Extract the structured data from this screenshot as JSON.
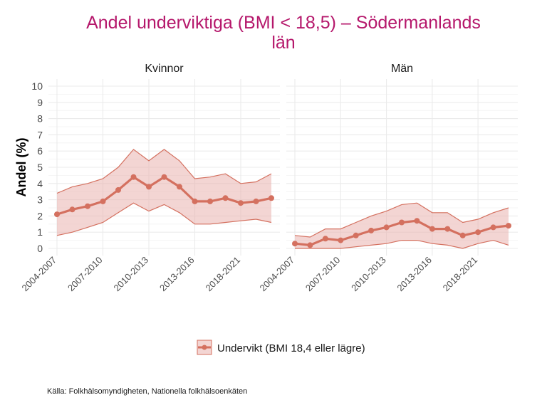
{
  "chart_data": {
    "type": "line",
    "title": "Andel underviktiga (BMI < 18,5) – Södermanlands län",
    "title_lines": [
      "Andel underviktiga (BMI < 18,5) – Södermanlands",
      "län"
    ],
    "ylabel": "Andel (%)",
    "xlabel": "",
    "ylim": [
      0,
      10
    ],
    "yticks": [
      0,
      1,
      2,
      3,
      4,
      5,
      6,
      7,
      8,
      9,
      10
    ],
    "x_index": [
      0,
      1,
      2,
      3,
      4,
      5,
      6,
      7,
      8,
      9,
      10,
      11,
      12,
      13,
      14
    ],
    "xticks": [
      {
        "index": 0,
        "label": "2004-2007"
      },
      {
        "index": 3,
        "label": "2007-2010"
      },
      {
        "index": 6,
        "label": "2010-2013"
      },
      {
        "index": 9,
        "label": "2013-2016"
      },
      {
        "index": 12,
        "label": "2018-2021"
      }
    ],
    "grid": true,
    "legend": {
      "position": "bottom",
      "label": "Undervikt (BMI 18,4 eller lägre)"
    },
    "color": "#d4705f",
    "ribbon_color": "#eab3ae",
    "panels": [
      {
        "name": "Kvinnor",
        "series": [
          {
            "name": "Undervikt (BMI 18,4 eller lägre)",
            "values": [
              2.1,
              2.4,
              2.6,
              2.9,
              3.6,
              4.4,
              3.8,
              4.4,
              3.8,
              2.9,
              2.9,
              3.1,
              2.8,
              2.9,
              3.1
            ],
            "upper": [
              3.4,
              3.8,
              4.0,
              4.3,
              5.0,
              6.1,
              5.4,
              6.1,
              5.4,
              4.3,
              4.4,
              4.6,
              4.0,
              4.1,
              4.6
            ],
            "lower": [
              0.8,
              1.0,
              1.3,
              1.6,
              2.2,
              2.8,
              2.3,
              2.7,
              2.2,
              1.5,
              1.5,
              1.6,
              1.7,
              1.8,
              1.6
            ]
          }
        ]
      },
      {
        "name": "Män",
        "series": [
          {
            "name": "Undervikt (BMI 18,4 eller lägre)",
            "values": [
              0.3,
              0.2,
              0.6,
              0.5,
              0.8,
              1.1,
              1.3,
              1.6,
              1.7,
              1.2,
              1.2,
              0.8,
              1.0,
              1.3,
              1.4
            ],
            "upper": [
              0.8,
              0.7,
              1.2,
              1.2,
              1.6,
              2.0,
              2.3,
              2.7,
              2.8,
              2.2,
              2.2,
              1.6,
              1.8,
              2.2,
              2.5
            ],
            "lower": [
              0.0,
              0.0,
              0.0,
              0.0,
              0.1,
              0.2,
              0.3,
              0.5,
              0.5,
              0.3,
              0.2,
              0.0,
              0.3,
              0.5,
              0.2
            ]
          }
        ]
      }
    ],
    "caption": "Källa: Folkhälsomyndigheten, Nationella folkhälsoenkäten"
  }
}
